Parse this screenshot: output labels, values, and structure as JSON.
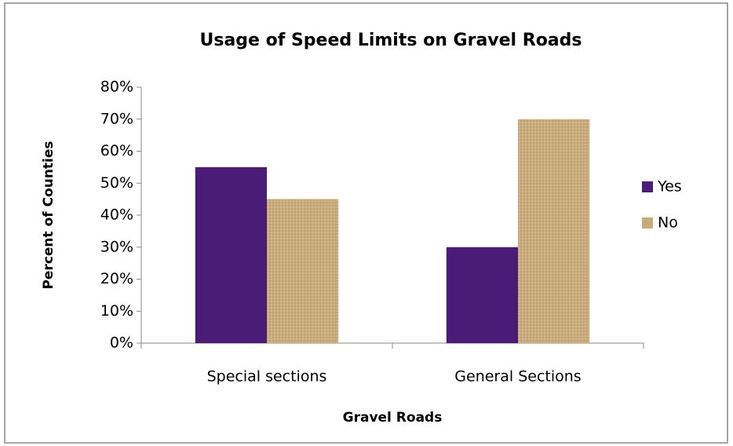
{
  "chart_data": {
    "type": "bar",
    "title": "Usage of Speed Limits on Gravel Roads",
    "x_label": "Gravel Roads",
    "y_label": "Percent of Counties",
    "categories": [
      "Special sections",
      "General Sections"
    ],
    "series": [
      {
        "name": "Yes",
        "color": "#4a1c78",
        "values": [
          55,
          30
        ]
      },
      {
        "name": "No",
        "color": "#c9aa7a",
        "values": [
          45,
          70
        ]
      }
    ],
    "ylim": [
      0,
      80
    ],
    "yticks": [
      {
        "value": 0,
        "label": "0%"
      },
      {
        "value": 10,
        "label": "10%"
      },
      {
        "value": 20,
        "label": "20%"
      },
      {
        "value": 30,
        "label": "30%"
      },
      {
        "value": 40,
        "label": "40%"
      },
      {
        "value": 50,
        "label": "50%"
      },
      {
        "value": 60,
        "label": "60%"
      },
      {
        "value": 70,
        "label": "70%"
      },
      {
        "value": 80,
        "label": "80%"
      }
    ],
    "grid": false,
    "legend": "right"
  }
}
